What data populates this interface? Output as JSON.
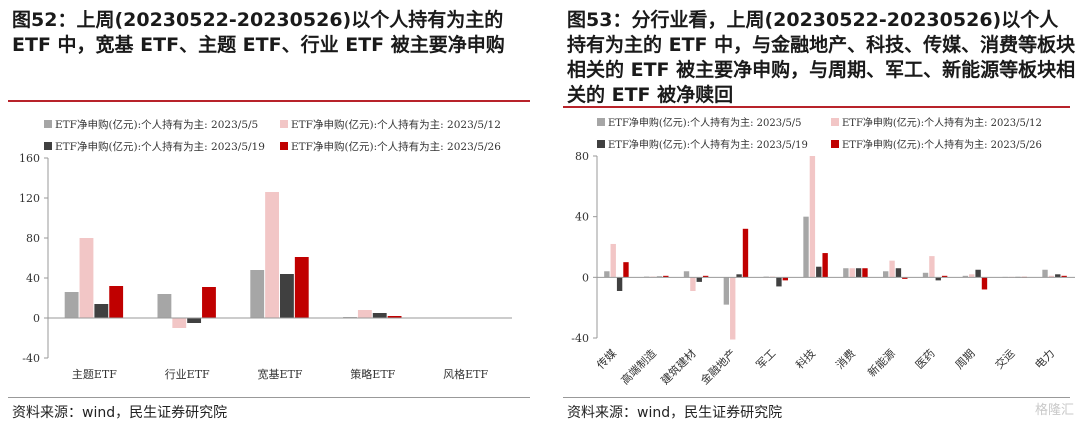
{
  "left_panel": {
    "title": "图52：上周(20230522-20230526)以个人持有为主的 ETF 中，宽基 ETF、主题 ETF、行业 ETF 被主要净申购",
    "source": "资料来源：wind，民生证券研究院"
  },
  "right_panel": {
    "title": "图53：分行业看，上周(20230522-20230526)以个人持有为主的 ETF 中，与金融地产、科技、传媒、消费等板块相关的 ETF 被主要净申购，与周期、军工、新能源等板块相关的 ETF 被净赎回",
    "source": "资料来源：wind，民生证券研究院",
    "watermark": "格隆汇"
  },
  "colors": [
    "#a6a6a6",
    "#f2c6c6",
    "#404040",
    "#c00000"
  ],
  "chart_data": [
    {
      "type": "bar",
      "categories": [
        "主题ETF",
        "行业ETF",
        "宽基ETF",
        "策略ETF",
        "风格ETF"
      ],
      "series": [
        {
          "name": "ETF净申购(亿元):个人持有为主: 2023/5/5",
          "values": [
            26,
            24,
            48,
            1,
            0.3
          ]
        },
        {
          "name": "ETF净申购(亿元):个人持有为主: 2023/5/12",
          "values": [
            80,
            -10,
            126,
            8,
            0.3
          ]
        },
        {
          "name": "ETF净申购(亿元):个人持有为主: 2023/5/19",
          "values": [
            14,
            -5,
            44,
            5,
            0.3
          ]
        },
        {
          "name": "ETF净申购(亿元):个人持有为主: 2023/5/26",
          "values": [
            32,
            31,
            61,
            2,
            0.3
          ]
        }
      ],
      "ylim": [
        -40,
        160
      ],
      "yticks": [
        -40,
        0,
        40,
        80,
        120,
        160
      ],
      "legend": "top"
    },
    {
      "type": "bar",
      "categories": [
        "传媒",
        "高端制造",
        "建筑建材",
        "金融地产",
        "军工",
        "科技",
        "消费",
        "新能源",
        "医药",
        "周期",
        "交运",
        "电力"
      ],
      "series": [
        {
          "name": "ETF净申购(亿元):个人持有为主: 2023/5/5",
          "values": [
            4,
            0.5,
            4,
            -18,
            0.5,
            40,
            6,
            4,
            3,
            1,
            0.3,
            5
          ]
        },
        {
          "name": "ETF净申购(亿元):个人持有为主: 2023/5/12",
          "values": [
            22,
            0.5,
            -9,
            -41,
            0.5,
            80,
            6,
            11,
            14,
            2,
            0.3,
            1
          ]
        },
        {
          "name": "ETF净申购(亿元):个人持有为主: 2023/5/19",
          "values": [
            -9,
            0.5,
            -3,
            2,
            -6,
            7,
            6,
            6,
            -2,
            5,
            0.3,
            2
          ]
        },
        {
          "name": "ETF净申购(亿元):个人持有为主: 2023/5/26",
          "values": [
            10,
            1,
            1,
            32,
            -2,
            16,
            6,
            -1,
            1,
            -8,
            0.3,
            1
          ]
        }
      ],
      "ylim": [
        -40,
        80
      ],
      "yticks": [
        -40,
        0,
        40,
        80
      ],
      "legend": "top"
    }
  ]
}
